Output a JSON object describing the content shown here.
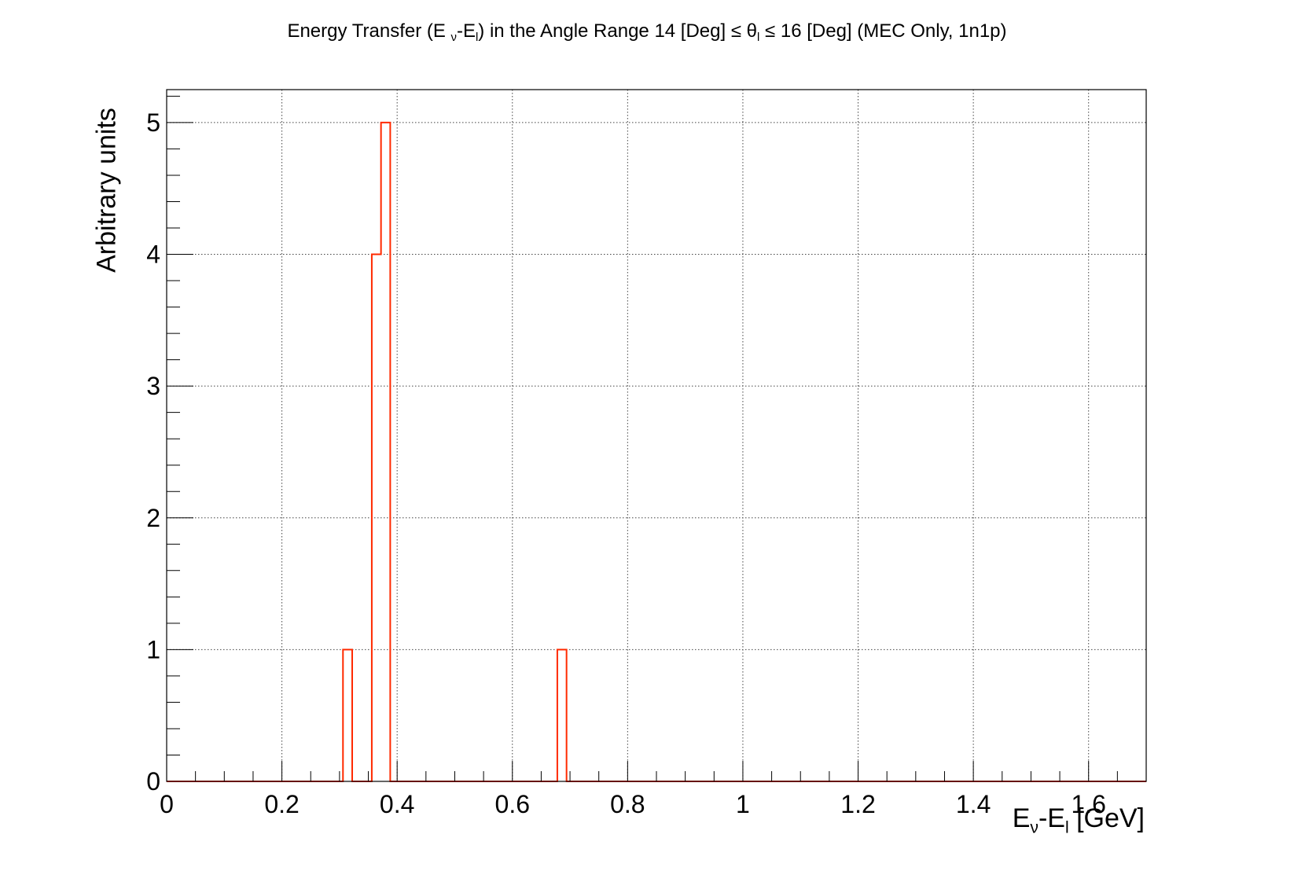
{
  "chart_data": {
    "type": "histogram",
    "title_parts": {
      "a": "Energy Transfer (E ",
      "sub1": "ν",
      "b": "-E",
      "sub2": "l",
      "c": ") in the Angle Range 14 [Deg]  ≤ θ",
      "sub3": "l",
      "d": " ≤ 16 [Deg] (MEC Only, 1n1p)"
    },
    "xlabel_parts": {
      "a": "E",
      "sub1": "ν",
      "b": "-E",
      "sub2": "l",
      "c": " [GeV]"
    },
    "ylabel": "Arbitrary units",
    "xlim": [
      0,
      1.7
    ],
    "ylim": [
      0,
      5.25
    ],
    "x_ticks": [
      0,
      0.2,
      0.4,
      0.6,
      0.8,
      1,
      1.2,
      1.4,
      1.6
    ],
    "x_tick_labels": [
      "0",
      "0.2",
      "0.4",
      "0.6",
      "0.8",
      "1",
      "1.2",
      "1.4",
      "1.6"
    ],
    "y_ticks": [
      0,
      1,
      2,
      3,
      4,
      5
    ],
    "y_tick_labels": [
      "0",
      "1",
      "2",
      "3",
      "4",
      "5"
    ],
    "grid": true,
    "bin_width": 0.016,
    "bins": [
      {
        "x0": 0.306,
        "x1": 0.322,
        "value": 1
      },
      {
        "x0": 0.356,
        "x1": 0.372,
        "value": 4
      },
      {
        "x0": 0.372,
        "x1": 0.388,
        "value": 5
      },
      {
        "x0": 0.678,
        "x1": 0.694,
        "value": 1
      }
    ],
    "line_color": "#ff2a00",
    "axis_color": "#000000",
    "grid_color": "#444444"
  }
}
